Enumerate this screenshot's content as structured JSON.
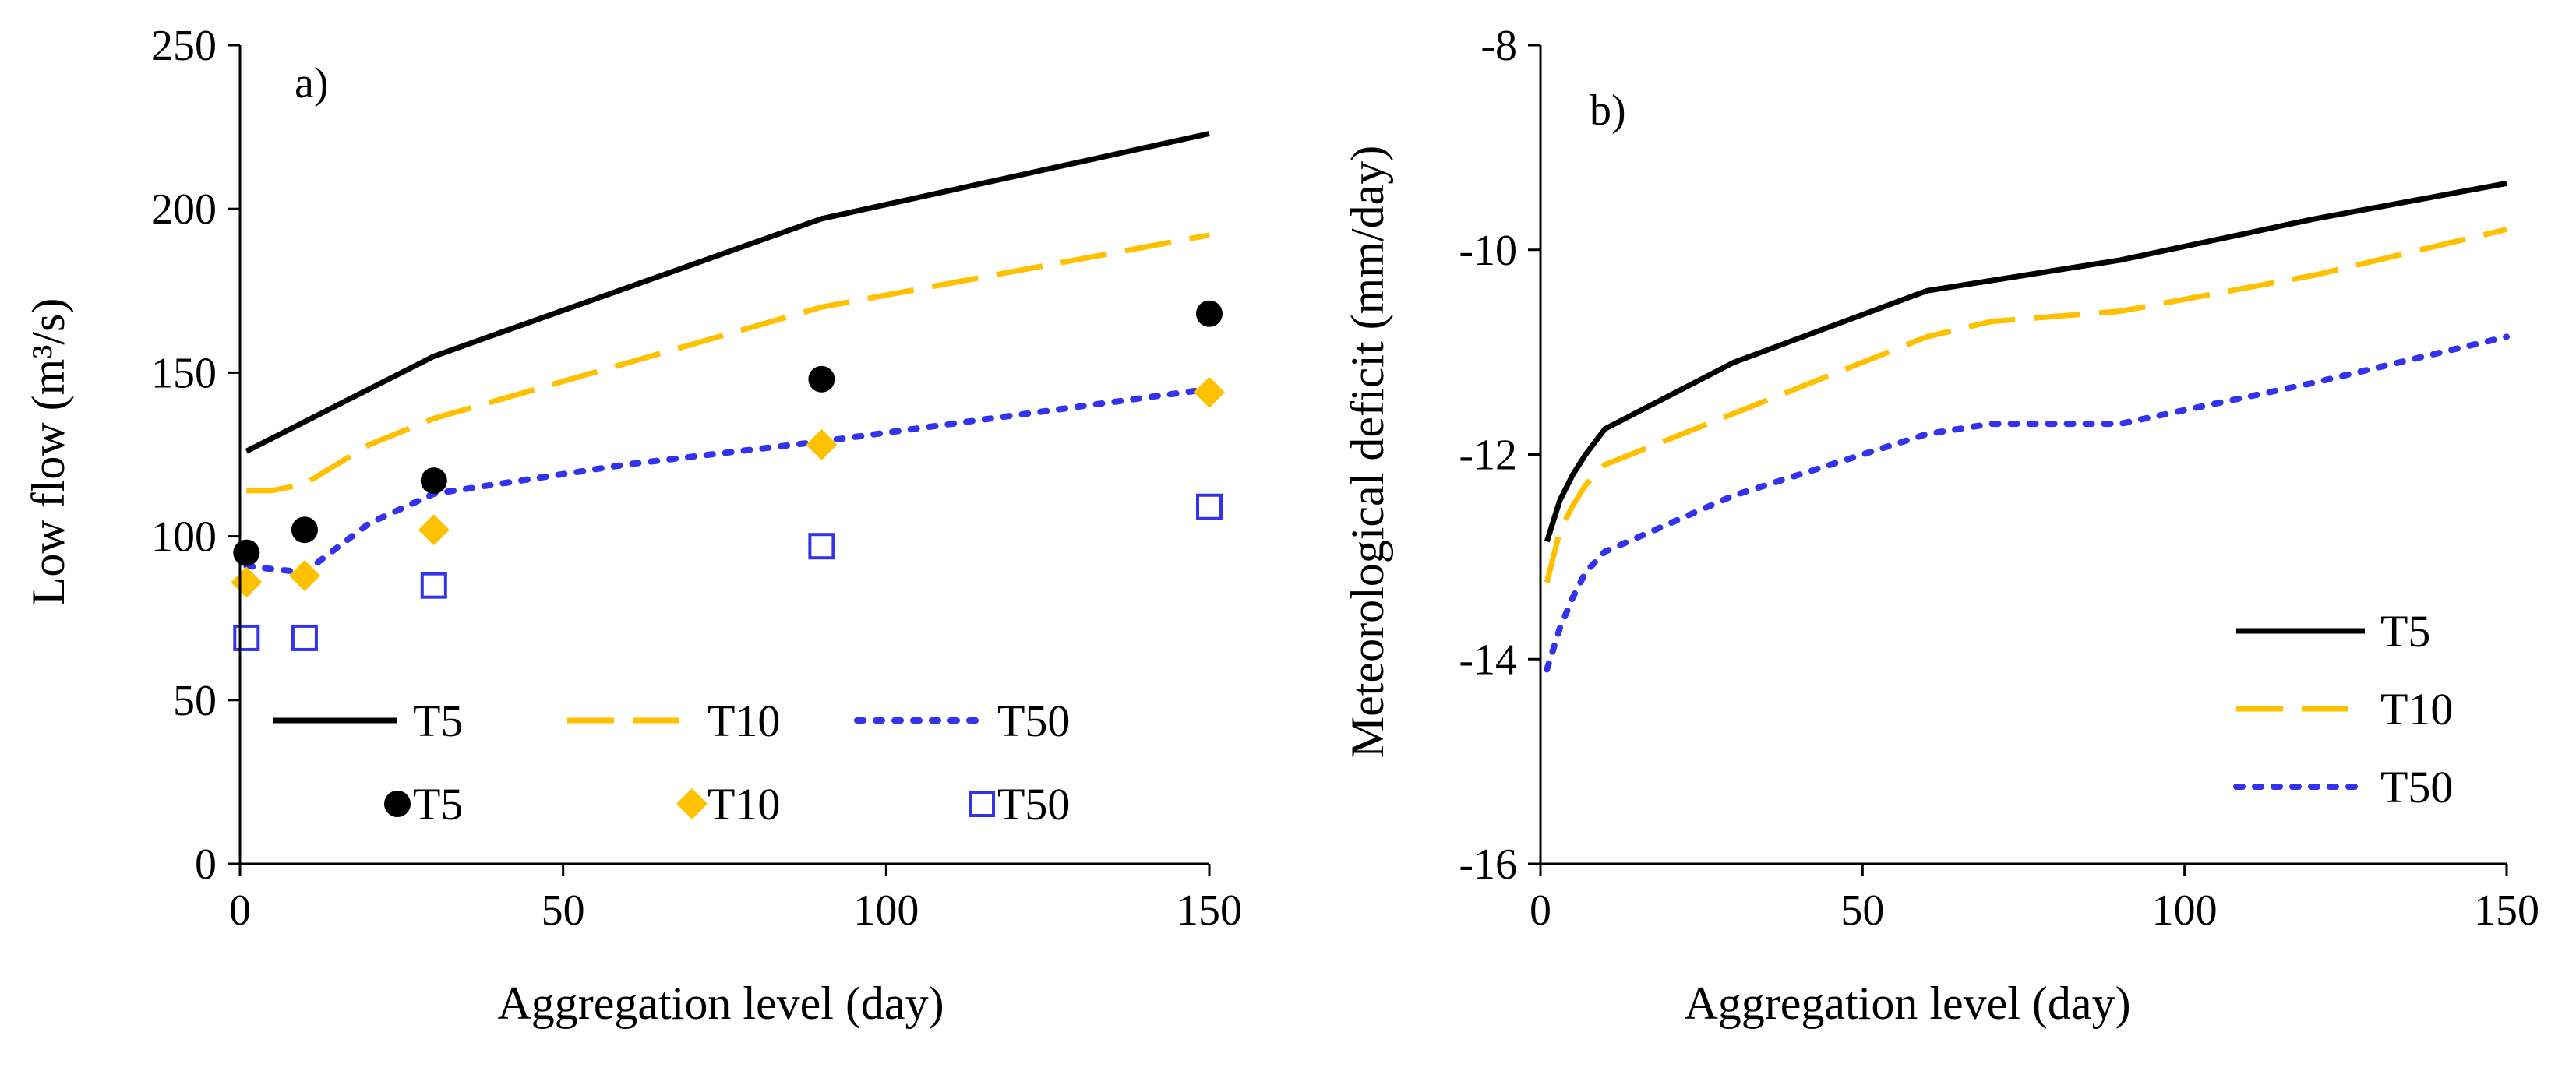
{
  "chart_data": [
    {
      "type": "line",
      "panel_label": "a)",
      "xlabel": "Aggregation level (day)",
      "ylabel": "Low flow (m³/s)",
      "xlim": [
        0,
        150
      ],
      "ylim": [
        0,
        250
      ],
      "xticks": [
        0,
        50,
        100,
        150
      ],
      "yticks": [
        0,
        50,
        100,
        150,
        200,
        250
      ],
      "grid": false,
      "legend_position": "bottom",
      "lines": [
        {
          "name": "T5",
          "style": "solid",
          "color": "#000000",
          "x": [
            1,
            10,
            30,
            90,
            150
          ],
          "y": [
            126,
            135,
            155,
            197,
            223
          ]
        },
        {
          "name": "T10",
          "style": "dashed",
          "color": "#FFC000",
          "x": [
            1,
            5,
            10,
            20,
            30,
            90,
            150
          ],
          "y": [
            114,
            114,
            116,
            128,
            136,
            170,
            192
          ]
        },
        {
          "name": "T50",
          "style": "dotted",
          "color": "#3333EE",
          "x": [
            1,
            5,
            10,
            20,
            30,
            60,
            90,
            150
          ],
          "y": [
            91,
            90,
            89,
            104,
            113,
            122,
            129,
            145
          ]
        }
      ],
      "markers": [
        {
          "name": "T5",
          "shape": "circle",
          "color": "#000000",
          "x": [
            1,
            10,
            30,
            90,
            150
          ],
          "y": [
            95,
            102,
            117,
            148,
            168
          ]
        },
        {
          "name": "T10",
          "shape": "diamond",
          "color": "#FFC000",
          "x": [
            1,
            10,
            30,
            90,
            150
          ],
          "y": [
            86,
            88,
            102,
            128,
            144
          ]
        },
        {
          "name": "T50",
          "shape": "open-square",
          "color": "#3333EE",
          "x": [
            1,
            10,
            30,
            90,
            150
          ],
          "y": [
            69,
            69,
            85,
            97,
            109
          ]
        }
      ]
    },
    {
      "type": "line",
      "panel_label": "b)",
      "xlabel": "Aggregation level (day)",
      "ylabel": "Meteorological deficit (mm/day)",
      "xlim": [
        0,
        150
      ],
      "ylim": [
        -16,
        -8
      ],
      "xticks": [
        0,
        50,
        100,
        150
      ],
      "yticks": [
        -16,
        -14,
        -12,
        -10,
        -8
      ],
      "grid": false,
      "legend_position": "bottom-right",
      "lines": [
        {
          "name": "T5",
          "style": "solid",
          "color": "#000000",
          "x": [
            1,
            3,
            5,
            7,
            10,
            30,
            60,
            90,
            120,
            150
          ],
          "y": [
            -12.85,
            -12.45,
            -12.2,
            -12.0,
            -11.75,
            -11.1,
            -10.4,
            -10.1,
            -9.7,
            -9.35
          ]
        },
        {
          "name": "T10",
          "style": "dashed",
          "color": "#FFC000",
          "x": [
            1,
            3,
            5,
            7,
            10,
            30,
            60,
            70,
            90,
            120,
            150
          ],
          "y": [
            -13.25,
            -12.75,
            -12.5,
            -12.3,
            -12.1,
            -11.6,
            -10.85,
            -10.7,
            -10.6,
            -10.25,
            -9.8
          ]
        },
        {
          "name": "T50",
          "style": "dotted",
          "color": "#3333EE",
          "x": [
            1,
            3,
            5,
            7,
            10,
            30,
            60,
            70,
            90,
            120,
            150
          ],
          "y": [
            -14.1,
            -13.7,
            -13.4,
            -13.15,
            -12.95,
            -12.4,
            -11.8,
            -11.7,
            -11.7,
            -11.3,
            -10.85
          ]
        }
      ]
    }
  ]
}
